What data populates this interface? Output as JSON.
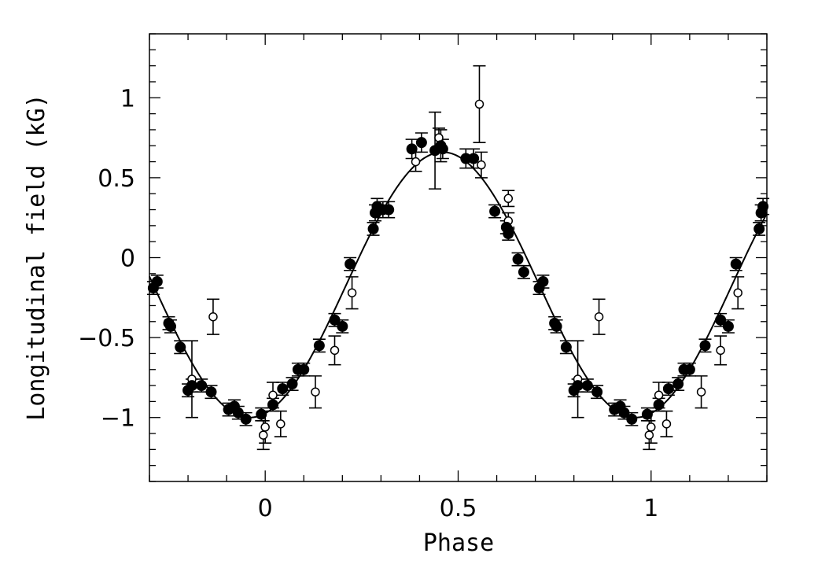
{
  "chart_data": {
    "type": "scatter",
    "title": "",
    "xlabel": "Phase",
    "ylabel": "Longitudinal field (kG)",
    "xlim": [
      -0.3,
      1.3
    ],
    "ylim": [
      -1.4,
      1.4
    ],
    "grid": false,
    "x_ticks": [
      {
        "value": 0,
        "label": "0"
      },
      {
        "value": 0.5,
        "label": "0.5"
      },
      {
        "value": 1,
        "label": "1"
      }
    ],
    "y_ticks": [
      {
        "value": 1,
        "label": "1"
      },
      {
        "value": 0.5,
        "label": "0.5"
      },
      {
        "value": 0,
        "label": "0"
      },
      {
        "value": -0.5,
        "label": "−0.5"
      },
      {
        "value": -1,
        "label": "−1"
      }
    ],
    "model_curve": {
      "style": "line",
      "color": "#000000",
      "mean": -0.17,
      "amplitude": 0.83,
      "peak_phase": 0.46
    },
    "series": [
      {
        "marker": "filled-circle",
        "color": "#000000",
        "points": [
          {
            "x": -0.29,
            "y": -0.19,
            "err": 0.04
          },
          {
            "x": -0.28,
            "y": -0.15,
            "err": 0.04
          },
          {
            "x": -0.25,
            "y": -0.41,
            "err": 0.04
          },
          {
            "x": -0.245,
            "y": -0.43,
            "err": 0.04
          },
          {
            "x": -0.22,
            "y": -0.56,
            "err": 0.04
          },
          {
            "x": -0.2,
            "y": -0.83,
            "err": 0.04
          },
          {
            "x": -0.19,
            "y": -0.8,
            "err": 0.04
          },
          {
            "x": -0.165,
            "y": -0.8,
            "err": 0.04
          },
          {
            "x": -0.14,
            "y": -0.84,
            "err": 0.04
          },
          {
            "x": -0.095,
            "y": -0.95,
            "err": 0.04
          },
          {
            "x": -0.08,
            "y": -0.93,
            "err": 0.04
          },
          {
            "x": -0.07,
            "y": -0.97,
            "err": 0.04
          },
          {
            "x": -0.05,
            "y": -1.01,
            "err": 0.04
          },
          {
            "x": -0.01,
            "y": -0.98,
            "err": 0.04
          },
          {
            "x": 0.02,
            "y": -0.92,
            "err": 0.04
          },
          {
            "x": 0.045,
            "y": -0.82,
            "err": 0.04
          },
          {
            "x": 0.07,
            "y": -0.79,
            "err": 0.04
          },
          {
            "x": 0.085,
            "y": -0.7,
            "err": 0.04
          },
          {
            "x": 0.1,
            "y": -0.7,
            "err": 0.04
          },
          {
            "x": 0.14,
            "y": -0.55,
            "err": 0.04
          },
          {
            "x": 0.18,
            "y": -0.39,
            "err": 0.04
          },
          {
            "x": 0.2,
            "y": -0.43,
            "err": 0.04
          },
          {
            "x": 0.22,
            "y": -0.04,
            "err": 0.04
          },
          {
            "x": 0.28,
            "y": 0.18,
            "err": 0.04
          },
          {
            "x": 0.285,
            "y": 0.28,
            "err": 0.05
          },
          {
            "x": 0.29,
            "y": 0.32,
            "err": 0.05
          },
          {
            "x": 0.305,
            "y": 0.3,
            "err": 0.05
          },
          {
            "x": 0.32,
            "y": 0.3,
            "err": 0.05
          },
          {
            "x": 0.38,
            "y": 0.68,
            "err": 0.06
          },
          {
            "x": 0.405,
            "y": 0.72,
            "err": 0.06
          },
          {
            "x": 0.44,
            "y": 0.67,
            "err": 0.24
          },
          {
            "x": 0.455,
            "y": 0.7,
            "err": 0.1
          },
          {
            "x": 0.46,
            "y": 0.68,
            "err": 0.06
          },
          {
            "x": 0.52,
            "y": 0.62,
            "err": 0.06
          },
          {
            "x": 0.54,
            "y": 0.62,
            "err": 0.06
          },
          {
            "x": 0.595,
            "y": 0.29,
            "err": 0.04
          },
          {
            "x": 0.625,
            "y": 0.19,
            "err": 0.04
          },
          {
            "x": 0.63,
            "y": 0.15,
            "err": 0.04
          },
          {
            "x": 0.655,
            "y": -0.01,
            "err": 0.04
          },
          {
            "x": 0.67,
            "y": -0.09,
            "err": 0.04
          },
          {
            "x": 0.71,
            "y": -0.19,
            "err": 0.04
          },
          {
            "x": 0.72,
            "y": -0.15,
            "err": 0.04
          },
          {
            "x": 0.75,
            "y": -0.41,
            "err": 0.04
          },
          {
            "x": 0.755,
            "y": -0.43,
            "err": 0.04
          },
          {
            "x": 0.78,
            "y": -0.56,
            "err": 0.04
          },
          {
            "x": 0.8,
            "y": -0.83,
            "err": 0.04
          },
          {
            "x": 0.81,
            "y": -0.8,
            "err": 0.04
          },
          {
            "x": 0.835,
            "y": -0.8,
            "err": 0.04
          },
          {
            "x": 0.86,
            "y": -0.84,
            "err": 0.04
          },
          {
            "x": 0.905,
            "y": -0.95,
            "err": 0.04
          },
          {
            "x": 0.92,
            "y": -0.93,
            "err": 0.04
          },
          {
            "x": 0.93,
            "y": -0.97,
            "err": 0.04
          },
          {
            "x": 0.95,
            "y": -1.01,
            "err": 0.04
          },
          {
            "x": 0.99,
            "y": -0.98,
            "err": 0.04
          },
          {
            "x": 1.02,
            "y": -0.92,
            "err": 0.04
          },
          {
            "x": 1.045,
            "y": -0.82,
            "err": 0.04
          },
          {
            "x": 1.07,
            "y": -0.79,
            "err": 0.04
          },
          {
            "x": 1.085,
            "y": -0.7,
            "err": 0.04
          },
          {
            "x": 1.1,
            "y": -0.7,
            "err": 0.04
          },
          {
            "x": 1.14,
            "y": -0.55,
            "err": 0.04
          },
          {
            "x": 1.18,
            "y": -0.39,
            "err": 0.04
          },
          {
            "x": 1.2,
            "y": -0.43,
            "err": 0.04
          },
          {
            "x": 1.22,
            "y": -0.04,
            "err": 0.04
          },
          {
            "x": 1.28,
            "y": 0.18,
            "err": 0.04
          },
          {
            "x": 1.285,
            "y": 0.28,
            "err": 0.05
          },
          {
            "x": 1.29,
            "y": 0.32,
            "err": 0.05
          }
        ]
      },
      {
        "marker": "open-circle",
        "color": "#000000",
        "points": [
          {
            "x": -0.19,
            "y": -0.76,
            "err": 0.24
          },
          {
            "x": -0.135,
            "y": -0.37,
            "err": 0.11
          },
          {
            "x": 0.0,
            "y": -1.06,
            "err": 0.1
          },
          {
            "x": -0.005,
            "y": -1.11,
            "err": 0.09
          },
          {
            "x": 0.02,
            "y": -0.86,
            "err": 0.08
          },
          {
            "x": 0.04,
            "y": -1.04,
            "err": 0.08
          },
          {
            "x": 0.13,
            "y": -0.84,
            "err": 0.1
          },
          {
            "x": 0.18,
            "y": -0.58,
            "err": 0.09
          },
          {
            "x": 0.225,
            "y": -0.22,
            "err": 0.1
          },
          {
            "x": 0.39,
            "y": 0.6,
            "err": 0.06
          },
          {
            "x": 0.45,
            "y": 0.75,
            "err": 0.06
          },
          {
            "x": 0.555,
            "y": 0.96,
            "err": 0.24
          },
          {
            "x": 0.56,
            "y": 0.58,
            "err": 0.08
          },
          {
            "x": 0.63,
            "y": 0.37,
            "err": 0.05
          },
          {
            "x": 0.63,
            "y": 0.23,
            "err": 0.05
          },
          {
            "x": 0.81,
            "y": -0.76,
            "err": 0.24
          },
          {
            "x": 0.865,
            "y": -0.37,
            "err": 0.11
          },
          {
            "x": 1.0,
            "y": -1.06,
            "err": 0.1
          },
          {
            "x": 0.995,
            "y": -1.11,
            "err": 0.09
          },
          {
            "x": 1.02,
            "y": -0.86,
            "err": 0.08
          },
          {
            "x": 1.04,
            "y": -1.04,
            "err": 0.08
          },
          {
            "x": 1.13,
            "y": -0.84,
            "err": 0.1
          },
          {
            "x": 1.18,
            "y": -0.58,
            "err": 0.09
          },
          {
            "x": 1.225,
            "y": -0.22,
            "err": 0.1
          }
        ]
      }
    ]
  }
}
